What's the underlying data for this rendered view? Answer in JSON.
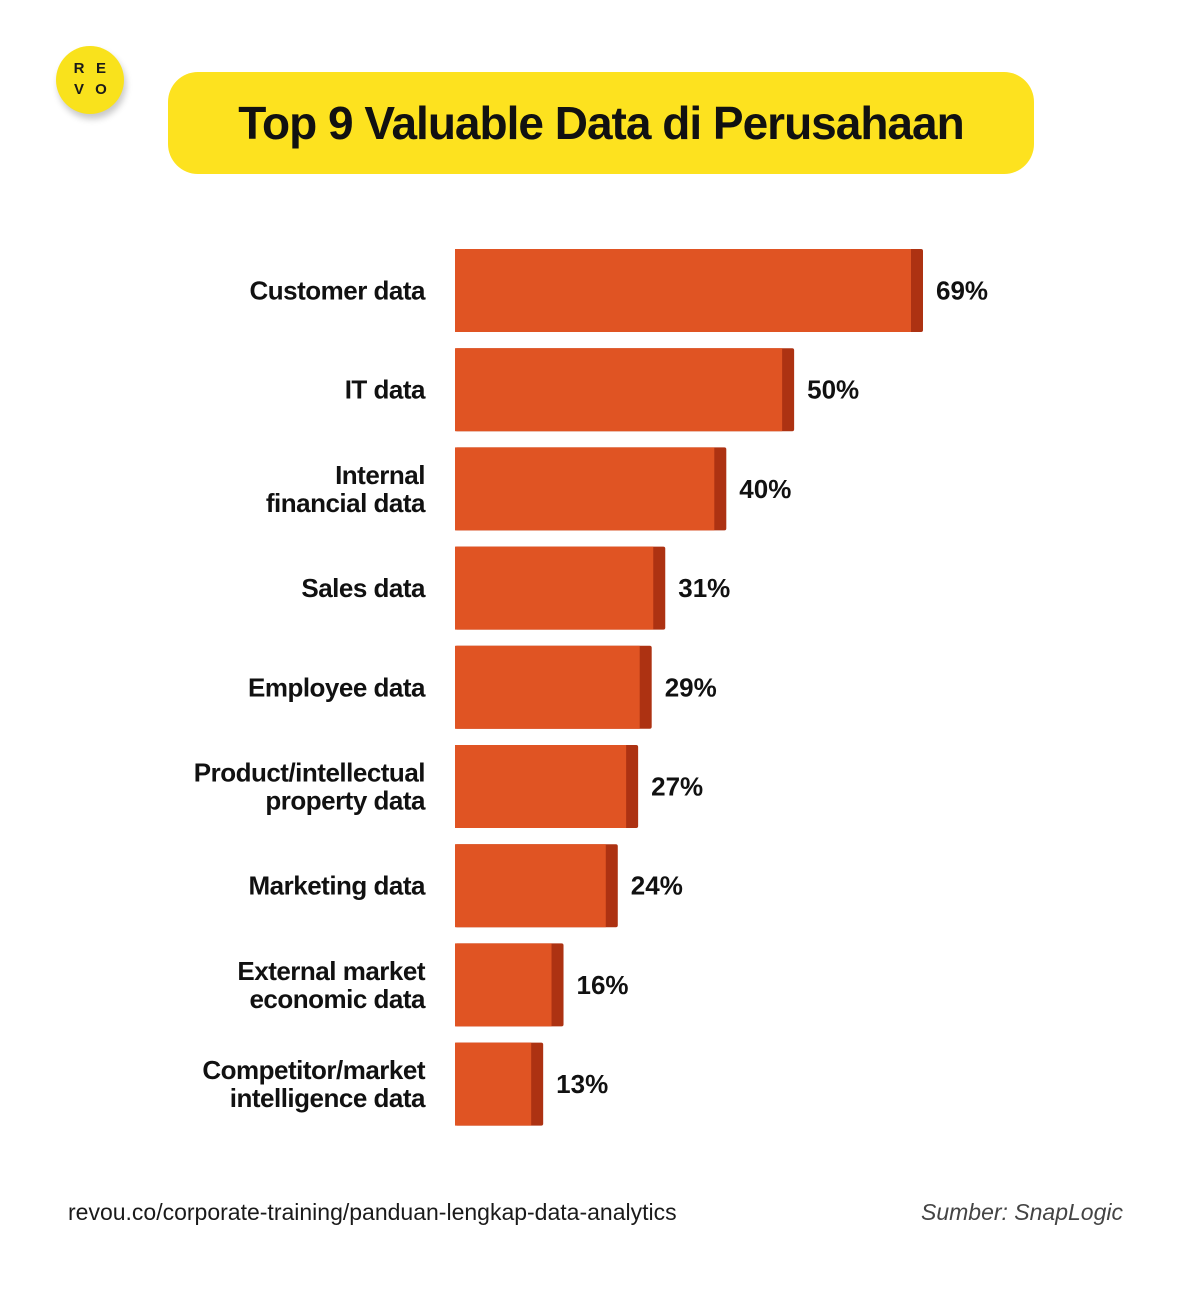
{
  "logo": {
    "letters": [
      "R",
      "E",
      "V",
      "O"
    ]
  },
  "colors": {
    "bar": "#e05423",
    "bar_edge": "#ad3212",
    "title_bg": "#fde21f",
    "logo_bg": "#f9e21c"
  },
  "chart_data": {
    "type": "bar",
    "orientation": "horizontal",
    "title": "Top 9 Valuable Data di Perusahaan",
    "xlabel": "",
    "ylabel": "",
    "xlim": [
      0,
      69
    ],
    "grid": false,
    "categories": [
      [
        "Customer data"
      ],
      [
        "IT data"
      ],
      [
        "Internal",
        "financial data"
      ],
      [
        "Sales data"
      ],
      [
        "Employee data"
      ],
      [
        "Product/intellectual",
        "property data"
      ],
      [
        "Marketing data"
      ],
      [
        "External market",
        "economic data"
      ],
      [
        "Competitor/market",
        "intelligence data"
      ]
    ],
    "values": [
      69,
      50,
      40,
      31,
      29,
      27,
      24,
      16,
      13
    ],
    "value_labels": [
      "69%",
      "50%",
      "40%",
      "31%",
      "29%",
      "27%",
      "24%",
      "16%",
      "13%"
    ]
  },
  "footer": {
    "url": "revou.co/corporate-training/panduan-lengkap-data-analytics",
    "source": "Sumber: SnapLogic"
  }
}
